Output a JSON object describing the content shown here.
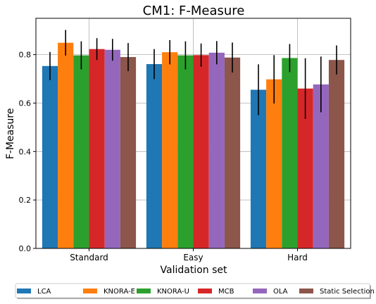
{
  "chart_data": {
    "type": "bar",
    "title": "CM1: F-Measure",
    "xlabel": "Validation set",
    "ylabel": "F-Measure",
    "categories": [
      "Standard",
      "Easy",
      "Hard"
    ],
    "ylim": [
      0,
      0.95
    ],
    "yticks": [
      "0.0",
      "0.2",
      "0.4",
      "0.6",
      "0.8"
    ],
    "grid": true,
    "legend_position": "bottom",
    "series": [
      {
        "name": "LCA",
        "color": "#1f77b4",
        "values": [
          0.753,
          0.761,
          0.655
        ],
        "errors": [
          0.058,
          0.062,
          0.105
        ]
      },
      {
        "name": "KNORA-E",
        "color": "#ff7f0e",
        "values": [
          0.849,
          0.81,
          0.698
        ],
        "errors": [
          0.053,
          0.05,
          0.1
        ]
      },
      {
        "name": "KNORA-U",
        "color": "#2ca02c",
        "values": [
          0.797,
          0.797,
          0.786
        ],
        "errors": [
          0.058,
          0.058,
          0.058
        ]
      },
      {
        "name": "MCB",
        "color": "#d62728",
        "values": [
          0.823,
          0.798,
          0.66
        ],
        "errors": [
          0.045,
          0.048,
          0.125
        ]
      },
      {
        "name": "OLA",
        "color": "#9467bd",
        "values": [
          0.82,
          0.808,
          0.677
        ],
        "errors": [
          0.045,
          0.048,
          0.115
        ]
      },
      {
        "name": "Static Selection",
        "color": "#8c564b",
        "values": [
          0.79,
          0.788,
          0.778
        ],
        "errors": [
          0.058,
          0.062,
          0.06
        ]
      }
    ]
  }
}
